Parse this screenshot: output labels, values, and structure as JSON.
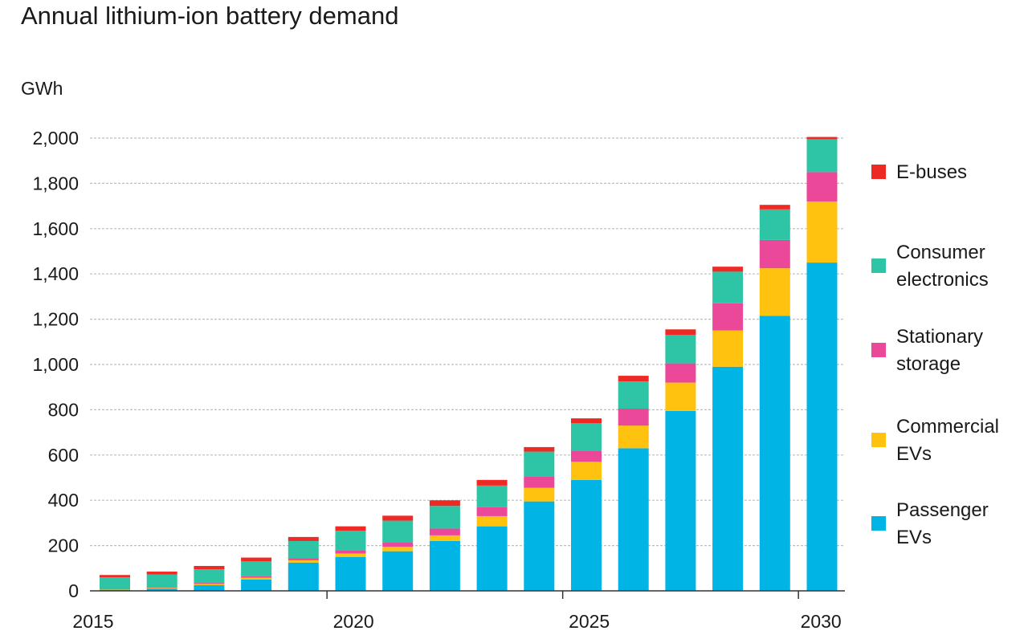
{
  "chart_data": {
    "type": "bar",
    "stacked": true,
    "title": "Annual lithium-ion battery demand",
    "ylabel": "GWh",
    "xlabel": "",
    "ylim": [
      0,
      2000
    ],
    "yticks": [
      0,
      200,
      400,
      600,
      800,
      1000,
      1200,
      1400,
      1600,
      1800,
      2000
    ],
    "ytick_labels": [
      "0",
      "200",
      "400",
      "600",
      "800",
      "1,000",
      "1,200",
      "1,400",
      "1,600",
      "1,800",
      "2,000"
    ],
    "categories": [
      2015,
      2016,
      2017,
      2018,
      2019,
      2020,
      2021,
      2022,
      2023,
      2024,
      2025,
      2026,
      2027,
      2028,
      2029,
      2030
    ],
    "xtick_labels": [
      "2015",
      "2020",
      "2025",
      "2030"
    ],
    "xticks": [
      2015,
      2020,
      2025,
      2030
    ],
    "grid": true,
    "legend_position": "right",
    "series": [
      {
        "name": "Passenger EVs",
        "label_lines": [
          "Passenger",
          "EVs"
        ],
        "color": "#00b4e6",
        "values": [
          5,
          10,
          25,
          50,
          125,
          150,
          175,
          220,
          285,
          395,
          490,
          630,
          795,
          990,
          1215,
          1450
        ]
      },
      {
        "name": "Commercial EVs",
        "label_lines": [
          "Commercial",
          "EVs"
        ],
        "color": "#ffc20e",
        "values": [
          2,
          3,
          5,
          8,
          10,
          15,
          20,
          25,
          45,
          60,
          80,
          100,
          125,
          160,
          210,
          270
        ]
      },
      {
        "name": "Stationary storage",
        "label_lines": [
          "Stationary",
          "storage"
        ],
        "color": "#ec4899",
        "values": [
          3,
          4,
          5,
          7,
          10,
          15,
          20,
          30,
          40,
          50,
          50,
          75,
          85,
          120,
          125,
          130
        ]
      },
      {
        "name": "Consumer electronics",
        "label_lines": [
          "Consumer",
          "electronics"
        ],
        "color": "#2ec4a6",
        "values": [
          50,
          55,
          60,
          65,
          75,
          85,
          95,
          100,
          95,
          110,
          120,
          120,
          125,
          140,
          135,
          145
        ]
      },
      {
        "name": "E-buses",
        "label_lines": [
          "E-buses"
        ],
        "color": "#ee2a24",
        "values": [
          10,
          13,
          15,
          17,
          18,
          20,
          22,
          25,
          25,
          20,
          22,
          25,
          25,
          22,
          20,
          10
        ]
      }
    ]
  }
}
